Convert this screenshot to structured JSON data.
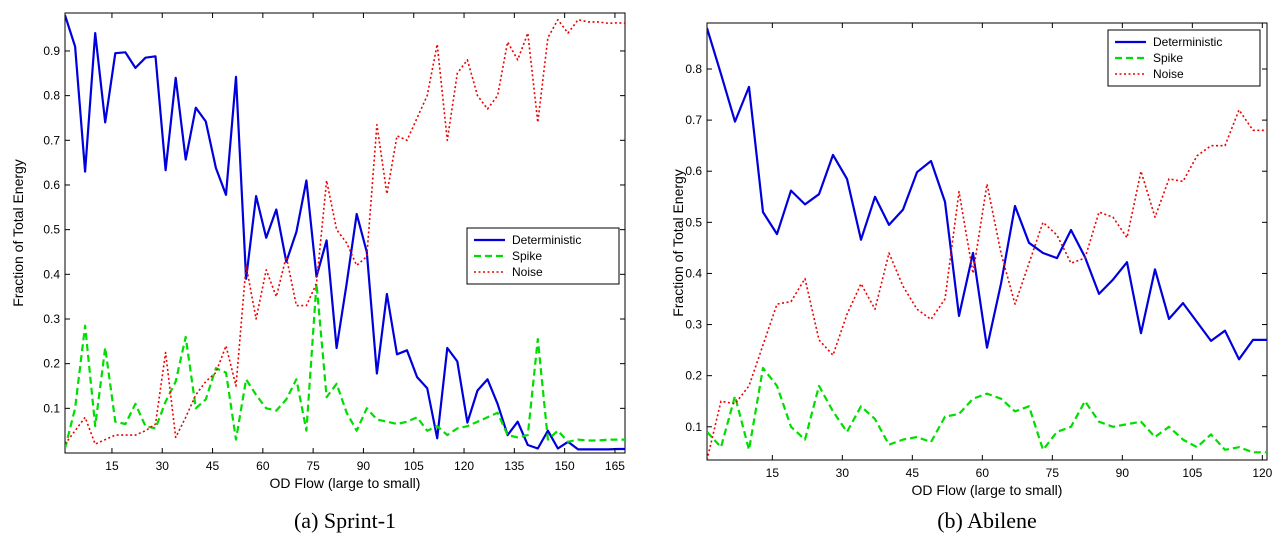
{
  "colors": {
    "deterministic": "#0000dd",
    "spike": "#00dd00",
    "noise": "#ee0000"
  },
  "chart_data": [
    {
      "type": "line",
      "caption": "(a) Sprint-1",
      "xlabel": "OD Flow (large to small)",
      "ylabel": "Fraction of Total Energy",
      "xlim": [
        1,
        168
      ],
      "ylim": [
        0,
        0.985
      ],
      "xticks": [
        "15",
        "30",
        "45",
        "60",
        "75",
        "90",
        "105",
        "120",
        "135",
        "150",
        "165"
      ],
      "yticks": [
        "0.1",
        "0.2",
        "0.3",
        "0.4",
        "0.5",
        "0.6",
        "0.7",
        "0.8",
        "0.9"
      ],
      "legend_position": "center-right",
      "series": [
        {
          "name": "Deterministic",
          "style": "solid",
          "x": [
            1,
            4,
            7,
            10,
            13,
            16,
            19,
            22,
            25,
            28,
            31,
            34,
            37,
            40,
            43,
            46,
            49,
            52,
            55,
            58,
            61,
            64,
            67,
            70,
            73,
            76,
            79,
            82,
            85,
            88,
            91,
            94,
            97,
            100,
            103,
            106,
            109,
            112,
            115,
            118,
            121,
            124,
            127,
            130,
            133,
            136,
            139,
            142,
            145,
            148,
            151,
            154,
            157,
            160,
            163,
            166,
            168
          ],
          "y": [
            0.98,
            0.91,
            0.63,
            0.94,
            0.74,
            0.895,
            0.897,
            0.862,
            0.885,
            0.888,
            0.633,
            0.84,
            0.657,
            0.773,
            0.742,
            0.638,
            0.578,
            0.842,
            0.39,
            0.575,
            0.482,
            0.545,
            0.428,
            0.495,
            0.61,
            0.395,
            0.476,
            0.235,
            0.38,
            0.535,
            0.45,
            0.178,
            0.356,
            0.221,
            0.23,
            0.17,
            0.145,
            0.033,
            0.235,
            0.205,
            0.068,
            0.14,
            0.165,
            0.11,
            0.04,
            0.07,
            0.018,
            0.01,
            0.05,
            0.01,
            0.025,
            0.008,
            0.008,
            0.008,
            0.008,
            0.009,
            0.009
          ]
        },
        {
          "name": "Spike",
          "style": "dashed",
          "x": [
            1,
            4,
            7,
            10,
            13,
            16,
            19,
            22,
            25,
            28,
            31,
            34,
            37,
            40,
            43,
            46,
            49,
            52,
            55,
            58,
            61,
            64,
            67,
            70,
            73,
            76,
            79,
            82,
            85,
            88,
            91,
            94,
            97,
            100,
            103,
            106,
            109,
            112,
            115,
            118,
            121,
            124,
            127,
            130,
            133,
            136,
            139,
            142,
            145,
            148,
            151,
            154,
            157,
            160,
            163,
            166,
            168
          ],
          "y": [
            0.01,
            0.1,
            0.285,
            0.06,
            0.236,
            0.07,
            0.065,
            0.11,
            0.06,
            0.055,
            0.115,
            0.16,
            0.26,
            0.1,
            0.12,
            0.19,
            0.18,
            0.03,
            0.165,
            0.13,
            0.1,
            0.095,
            0.12,
            0.165,
            0.05,
            0.38,
            0.125,
            0.155,
            0.09,
            0.05,
            0.1,
            0.075,
            0.07,
            0.065,
            0.07,
            0.08,
            0.05,
            0.06,
            0.04,
            0.055,
            0.06,
            0.07,
            0.08,
            0.09,
            0.04,
            0.035,
            0.04,
            0.255,
            0.03,
            0.05,
            0.025,
            0.03,
            0.028,
            0.028,
            0.03,
            0.03,
            0.03
          ]
        },
        {
          "name": "Noise",
          "style": "dotted",
          "x": [
            1,
            4,
            7,
            10,
            13,
            16,
            19,
            22,
            25,
            28,
            31,
            34,
            37,
            40,
            43,
            46,
            49,
            52,
            55,
            58,
            61,
            64,
            67,
            70,
            73,
            76,
            79,
            82,
            85,
            88,
            91,
            94,
            97,
            100,
            103,
            106,
            109,
            112,
            115,
            118,
            121,
            124,
            127,
            130,
            133,
            136,
            139,
            142,
            145,
            148,
            151,
            154,
            157,
            160,
            163,
            166,
            168
          ],
          "y": [
            0.02,
            0.05,
            0.08,
            0.02,
            0.03,
            0.04,
            0.04,
            0.04,
            0.05,
            0.065,
            0.225,
            0.035,
            0.08,
            0.13,
            0.16,
            0.18,
            0.24,
            0.15,
            0.42,
            0.3,
            0.41,
            0.35,
            0.44,
            0.33,
            0.33,
            0.38,
            0.61,
            0.5,
            0.47,
            0.42,
            0.44,
            0.735,
            0.58,
            0.71,
            0.7,
            0.75,
            0.8,
            0.915,
            0.7,
            0.85,
            0.88,
            0.8,
            0.77,
            0.8,
            0.92,
            0.88,
            0.94,
            0.74,
            0.93,
            0.97,
            0.94,
            0.97,
            0.965,
            0.965,
            0.962,
            0.963,
            0.962
          ]
        }
      ]
    },
    {
      "type": "line",
      "caption": "(b) Abilene",
      "xlabel": "OD Flow (large to small)",
      "ylabel": "Fraction of Total Energy",
      "xlim": [
        1,
        121
      ],
      "ylim": [
        0.035,
        0.89
      ],
      "xticks": [
        "15",
        "30",
        "45",
        "60",
        "75",
        "90",
        "105",
        "120"
      ],
      "yticks": [
        "0.1",
        "0.2",
        "0.3",
        "0.4",
        "0.5",
        "0.6",
        "0.7",
        "0.8"
      ],
      "legend_position": "top-right",
      "series": [
        {
          "name": "Deterministic",
          "style": "solid",
          "x": [
            1,
            4,
            7,
            10,
            13,
            16,
            19,
            22,
            25,
            28,
            31,
            34,
            37,
            40,
            43,
            46,
            49,
            52,
            55,
            58,
            61,
            64,
            67,
            70,
            73,
            76,
            79,
            82,
            85,
            88,
            91,
            94,
            97,
            100,
            103,
            106,
            109,
            112,
            115,
            118,
            121
          ],
          "y": [
            0.88,
            0.79,
            0.697,
            0.765,
            0.52,
            0.477,
            0.562,
            0.535,
            0.555,
            0.632,
            0.585,
            0.466,
            0.55,
            0.495,
            0.525,
            0.598,
            0.62,
            0.54,
            0.317,
            0.44,
            0.255,
            0.38,
            0.532,
            0.46,
            0.44,
            0.43,
            0.485,
            0.432,
            0.36,
            0.388,
            0.422,
            0.283,
            0.408,
            0.311,
            0.342,
            0.305,
            0.268,
            0.288,
            0.232,
            0.27,
            0.27
          ]
        },
        {
          "name": "Spike",
          "style": "dashed",
          "x": [
            1,
            4,
            7,
            10,
            13,
            16,
            19,
            22,
            25,
            28,
            31,
            34,
            37,
            40,
            43,
            46,
            49,
            52,
            55,
            58,
            61,
            64,
            67,
            70,
            73,
            76,
            79,
            82,
            85,
            88,
            91,
            94,
            97,
            100,
            103,
            106,
            109,
            112,
            115,
            118,
            121
          ],
          "y": [
            0.09,
            0.06,
            0.16,
            0.055,
            0.215,
            0.18,
            0.1,
            0.075,
            0.18,
            0.13,
            0.09,
            0.14,
            0.115,
            0.065,
            0.075,
            0.08,
            0.07,
            0.12,
            0.125,
            0.155,
            0.165,
            0.155,
            0.13,
            0.14,
            0.055,
            0.09,
            0.1,
            0.15,
            0.11,
            0.1,
            0.105,
            0.11,
            0.08,
            0.1,
            0.075,
            0.06,
            0.085,
            0.055,
            0.06,
            0.05,
            0.05
          ]
        },
        {
          "name": "Noise",
          "style": "dotted",
          "x": [
            1,
            4,
            7,
            10,
            13,
            16,
            19,
            22,
            25,
            28,
            31,
            34,
            37,
            40,
            43,
            46,
            49,
            52,
            55,
            58,
            61,
            64,
            67,
            70,
            73,
            76,
            79,
            82,
            85,
            88,
            91,
            94,
            97,
            100,
            103,
            106,
            109,
            112,
            115,
            118,
            121
          ],
          "y": [
            0.035,
            0.15,
            0.145,
            0.18,
            0.26,
            0.34,
            0.345,
            0.39,
            0.27,
            0.24,
            0.32,
            0.38,
            0.33,
            0.44,
            0.375,
            0.33,
            0.31,
            0.35,
            0.56,
            0.4,
            0.575,
            0.44,
            0.34,
            0.42,
            0.5,
            0.475,
            0.42,
            0.43,
            0.52,
            0.51,
            0.47,
            0.6,
            0.51,
            0.585,
            0.58,
            0.63,
            0.65,
            0.65,
            0.72,
            0.68,
            0.68
          ]
        }
      ]
    }
  ]
}
